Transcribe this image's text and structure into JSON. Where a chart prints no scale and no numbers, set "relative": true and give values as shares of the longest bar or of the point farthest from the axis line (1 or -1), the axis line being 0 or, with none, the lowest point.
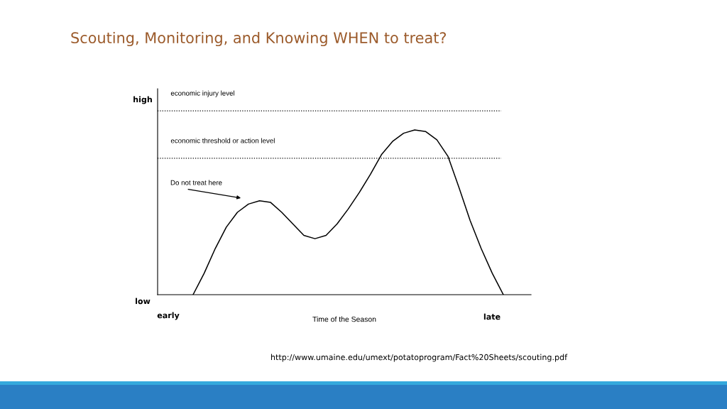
{
  "chart_data": {
    "type": "line",
    "relative": true,
    "title": "Scouting, Monitoring, and Knowing WHEN to treat?",
    "xlabel": "Time of the Season",
    "categories": [
      null,
      null,
      null,
      null,
      null,
      null,
      null,
      null,
      null,
      null,
      null,
      null,
      null,
      null,
      null,
      null,
      null,
      null,
      null,
      null,
      null,
      null,
      null,
      null,
      null,
      null,
      null,
      null,
      null,
      null,
      null,
      null,
      null,
      null
    ],
    "series": [
      {
        "color": "#000000",
        "values": [
          null,
          null,
          null,
          0,
          0.13,
          0.28,
          0.41,
          0.5,
          0.55,
          0.57,
          0.56,
          0.5,
          0.43,
          0.36,
          0.34,
          0.36,
          0.43,
          0.52,
          0.62,
          0.73,
          0.85,
          0.93,
          0.98,
          1.0,
          0.99,
          0.94,
          0.84,
          0.65,
          0.45,
          0.28,
          0.13,
          0,
          null,
          null
        ]
      }
    ],
    "ref_lines": [
      {
        "axis": "y",
        "value": 1.116,
        "label": "economic injury level",
        "color": "#000000",
        "line_style": "dotted"
      },
      {
        "axis": "y",
        "value": 0.828,
        "label": "economic threshold or action level",
        "color": "#000000",
        "line_style": "dotted"
      }
    ],
    "annotations": [
      "high",
      "low",
      "early",
      "late",
      "Do not treat here",
      "http://www.umaine.edu/umext/potatoprogram/Fact%20Sheets/scouting.pdf"
    ],
    "legend": false,
    "marker": "none",
    "line_style": "solid"
  }
}
